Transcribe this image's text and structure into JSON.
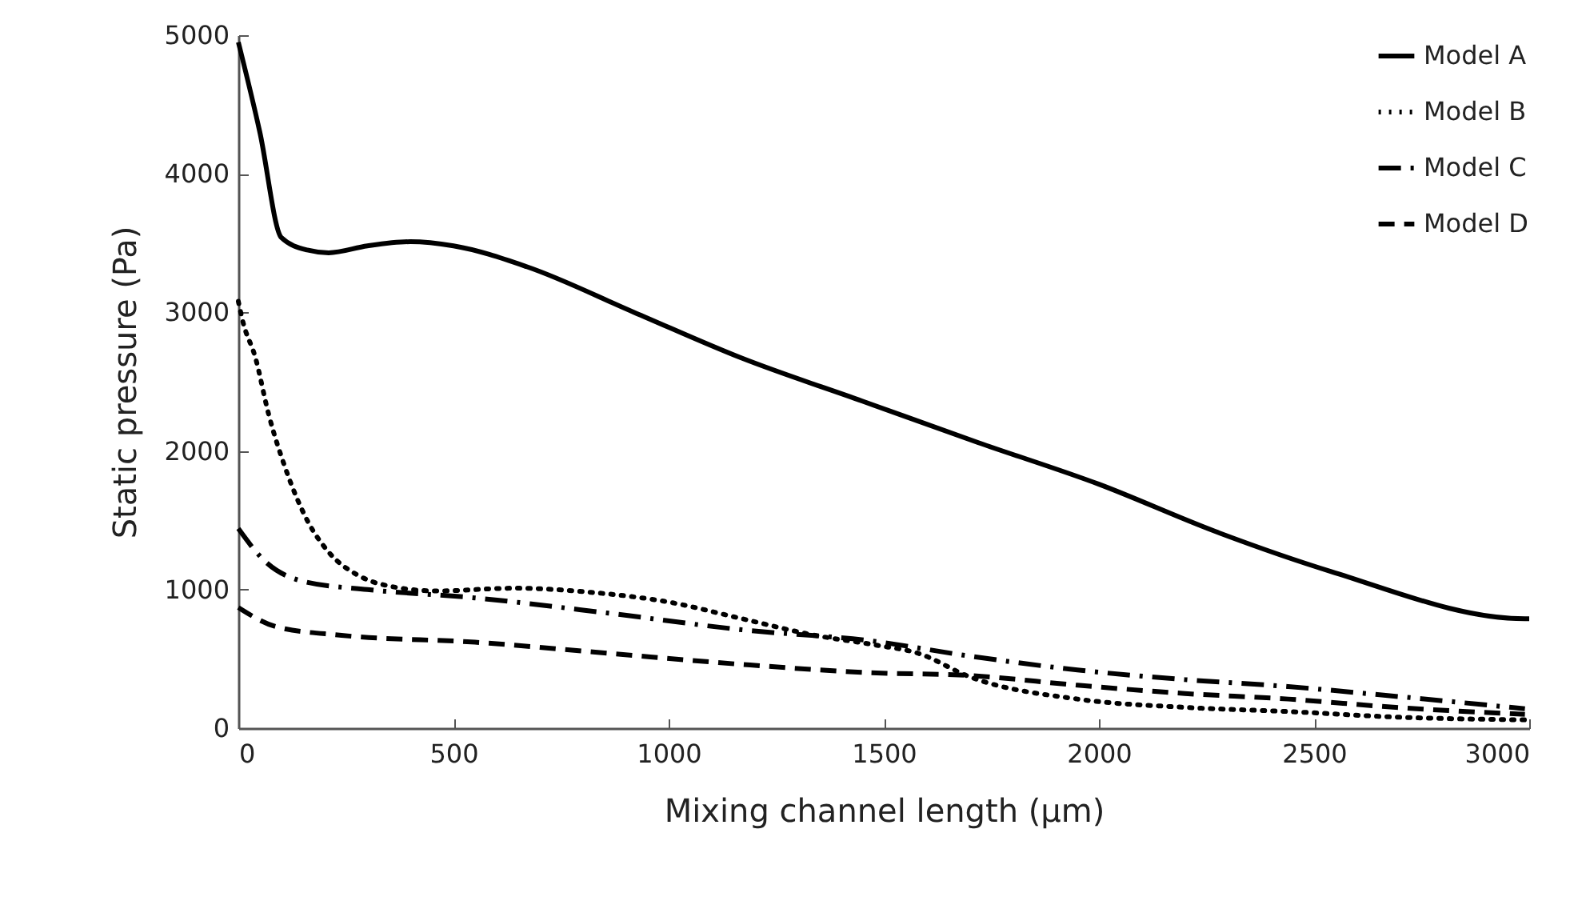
{
  "chart_data": {
    "type": "line",
    "xlabel": "Mixing channel length (μm)",
    "ylabel": "Static pressure (Pa)",
    "xlim": [
      0,
      3000
    ],
    "ylim": [
      0,
      5000
    ],
    "xticks": [
      0,
      500,
      1000,
      1500,
      2000,
      2500,
      3000
    ],
    "yticks": [
      0,
      1000,
      2000,
      3000,
      4000,
      5000
    ],
    "grid": false,
    "legend": "top right",
    "marker": "none",
    "series": [
      {
        "name": "Model A",
        "color": "#000000",
        "line_style": "solid",
        "x": [
          0,
          50,
          100,
          160,
          210,
          300,
          400,
          500,
          670,
          920,
          1170,
          1450,
          1720,
          2000,
          2270,
          2540,
          2990,
          3000
        ],
        "values": [
          4950,
          4300,
          3540,
          3450,
          3430,
          3480,
          3510,
          3480,
          3330,
          3000,
          2670,
          2360,
          2060,
          1760,
          1420,
          1130,
          790,
          790
        ]
      },
      {
        "name": "Model B",
        "color": "#000000",
        "line_style": "dotted",
        "x": [
          0,
          10,
          40,
          70,
          110,
          160,
          210,
          280,
          330,
          460,
          640,
          820,
          1000,
          1170,
          1340,
          1480,
          1580,
          1700,
          1950,
          2200,
          2440,
          2690,
          2990
        ],
        "values": [
          3080,
          2940,
          2670,
          2270,
          1870,
          1500,
          1270,
          1100,
          1040,
          990,
          1010,
          980,
          910,
          790,
          670,
          600,
          540,
          370,
          210,
          150,
          120,
          80,
          60
        ]
      },
      {
        "name": "Model C",
        "color": "#000000",
        "line_style": "dashdot",
        "x": [
          0,
          60,
          150,
          300,
          550,
          860,
          1170,
          1470,
          1700,
          1950,
          2200,
          2440,
          2690,
          2990
        ],
        "values": [
          1440,
          1210,
          1060,
          1000,
          940,
          830,
          710,
          630,
          520,
          420,
          350,
          300,
          230,
          140
        ]
      },
      {
        "name": "Model D",
        "color": "#000000",
        "line_style": "dashed",
        "x": [
          0,
          90,
          240,
          550,
          860,
          1170,
          1470,
          1700,
          1950,
          2200,
          2440,
          2690,
          2990
        ],
        "values": [
          870,
          730,
          670,
          620,
          540,
          460,
          400,
          380,
          310,
          250,
          210,
          150,
          100
        ]
      }
    ]
  }
}
